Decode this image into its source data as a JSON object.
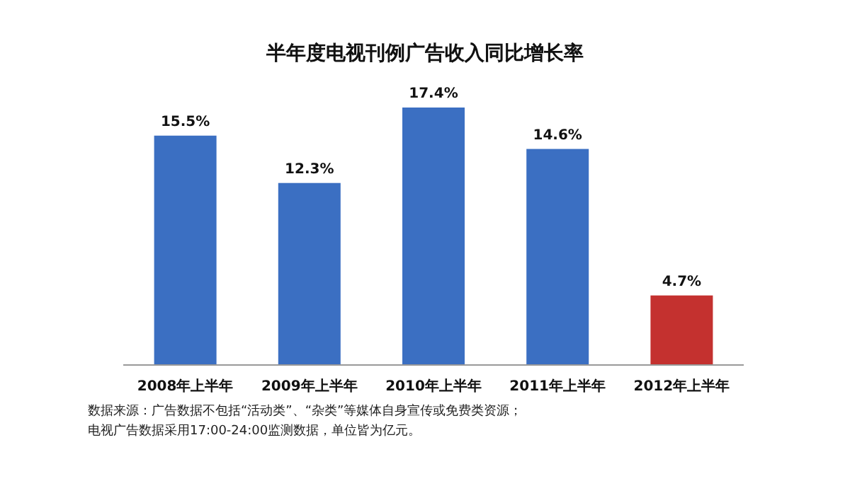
{
  "chart_data": {
    "type": "bar",
    "title": "半年度电视刊例广告收入同比增长率",
    "categories": [
      "2008年上半年",
      "2009年上半年",
      "2010年上半年",
      "2011年上半年",
      "2012年上半年"
    ],
    "values": [
      15.5,
      12.3,
      17.4,
      14.6,
      4.7
    ],
    "colors": [
      "#3b6fc2",
      "#3b6fc2",
      "#3b6fc2",
      "#3b6fc2",
      "#c4312f"
    ],
    "value_labels": [
      "15.5%",
      "12.3%",
      "17.4%",
      "14.6%",
      "4.7%"
    ],
    "annotations": [
      "数据来源：广告数据不包括“活动类”、“杂类”等媒体自身宣传或免费类资源；",
      "电视广告数据采用17:00-24:00监测数据，单位皆为亿元。"
    ]
  }
}
